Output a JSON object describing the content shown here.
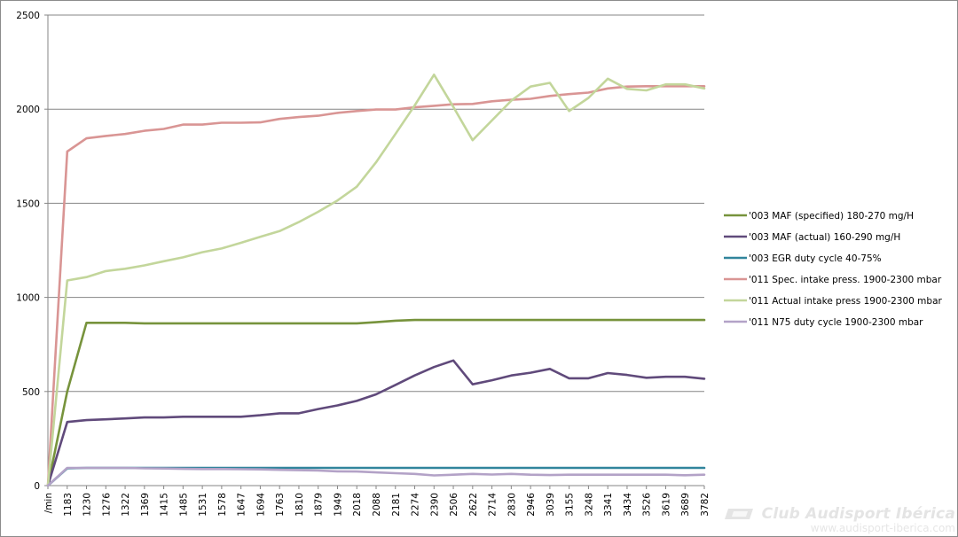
{
  "chart_data": {
    "type": "line",
    "title": "",
    "xlabel": "",
    "ylabel": "",
    "ylim": [
      0,
      2500
    ],
    "yticks": [
      0,
      500,
      1000,
      1500,
      2000,
      2500
    ],
    "grid": "horizontal",
    "legend_position": "right",
    "categories": [
      "/min",
      "1183",
      "1230",
      "1276",
      "1322",
      "1369",
      "1415",
      "1485",
      "1531",
      "1578",
      "1647",
      "1694",
      "1763",
      "1810",
      "1879",
      "1949",
      "2018",
      "2088",
      "2181",
      "2274",
      "2390",
      "2506",
      "2622",
      "2714",
      "2830",
      "2946",
      "3039",
      "3155",
      "3248",
      "3341",
      "3434",
      "3526",
      "3619",
      "3689",
      "3782"
    ],
    "series": [
      {
        "name": "'003 MAF (specified) 180-270 mg/H",
        "color": "#77933c",
        "values": [
          0,
          500,
          865,
          865,
          865,
          862,
          862,
          862,
          862,
          862,
          862,
          862,
          862,
          862,
          862,
          862,
          862,
          868,
          876,
          880,
          880,
          880,
          880,
          880,
          880,
          880,
          880,
          880,
          880,
          880,
          880,
          880,
          880,
          880,
          880
        ]
      },
      {
        "name": "'003 MAF (actual)  160-290 mg/H",
        "color": "#604a7b",
        "values": [
          0,
          338,
          348,
          352,
          357,
          362,
          362,
          366,
          366,
          366,
          366,
          374,
          384,
          384,
          407,
          426,
          450,
          485,
          535,
          585,
          630,
          665,
          538,
          560,
          585,
          600,
          620,
          570,
          570,
          598,
          588,
          573,
          578,
          578,
          568
        ]
      },
      {
        "name": "'003 EGR duty cycle 40-75%",
        "color": "#31859c",
        "values": [
          0,
          92,
          94,
          94,
          94,
          94,
          94,
          94,
          94,
          94,
          94,
          94,
          94,
          94,
          94,
          94,
          94,
          94,
          94,
          94,
          94,
          94,
          94,
          94,
          94,
          94,
          94,
          94,
          94,
          94,
          94,
          94,
          94,
          94,
          94
        ]
      },
      {
        "name": "'011 Spec. intake  press. 1900-2300 mbar",
        "color": "#d99594",
        "values": [
          0,
          1775,
          1845,
          1858,
          1868,
          1885,
          1895,
          1918,
          1918,
          1928,
          1928,
          1930,
          1948,
          1958,
          1965,
          1980,
          1990,
          1998,
          1998,
          2010,
          2018,
          2026,
          2028,
          2042,
          2050,
          2055,
          2070,
          2080,
          2088,
          2110,
          2120,
          2122,
          2122,
          2122,
          2122
        ]
      },
      {
        "name": "'011 Actual intake press 1900-2300 mbar",
        "color": "#c3d69b",
        "values": [
          0,
          1090,
          1108,
          1140,
          1152,
          1170,
          1192,
          1213,
          1240,
          1260,
          1290,
          1322,
          1352,
          1400,
          1455,
          1515,
          1588,
          1718,
          1868,
          2020,
          2183,
          2012,
          1835,
          1940,
          2045,
          2120,
          2140,
          1990,
          2060,
          2162,
          2108,
          2100,
          2132,
          2132,
          2110
        ]
      },
      {
        "name": "'011 N75 duty cycle 1900-2300 mbar",
        "color": "#b3a2c7",
        "values": [
          0,
          94,
          94,
          94,
          94,
          92,
          91,
          89,
          88,
          88,
          87,
          86,
          84,
          82,
          80,
          76,
          75,
          70,
          66,
          62,
          54,
          58,
          62,
          59,
          62,
          58,
          56,
          58,
          58,
          58,
          58,
          58,
          58,
          55,
          58
        ]
      }
    ]
  },
  "watermark": {
    "title": "Club Audisport Ibérica",
    "url": "www.audisport-iberica.com"
  }
}
